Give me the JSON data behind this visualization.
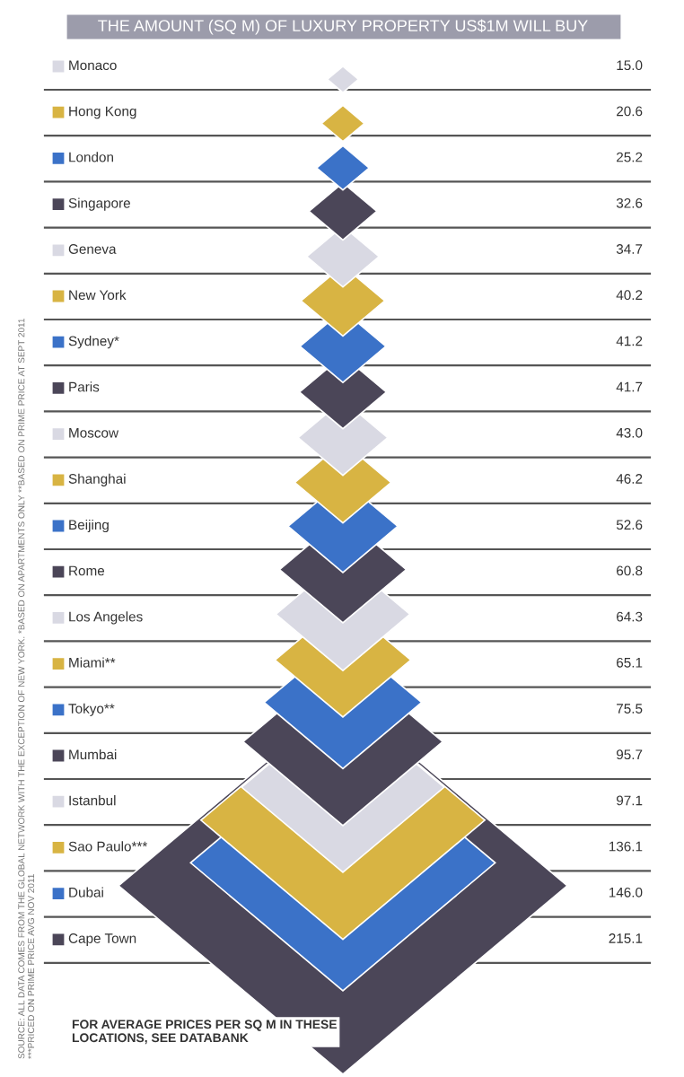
{
  "chart_data": {
    "type": "other",
    "title": "THE AMOUNT (SQ M) OF LUXURY PROPERTY US$1M WILL BUY",
    "categories": [
      "Monaco",
      "Hong Kong",
      "London",
      "Singapore",
      "Geneva",
      "New York",
      "Sydney*",
      "Paris",
      "Moscow",
      "Shanghai",
      "Beijing",
      "Rome",
      "Los Angeles",
      "Miami**",
      "Tokyo**",
      "Mumbai",
      "Istanbul",
      "Sao Paulo***",
      "Dubai",
      "Cape Town"
    ],
    "values": [
      15.0,
      20.6,
      25.2,
      32.6,
      34.7,
      40.2,
      41.2,
      41.7,
      43.0,
      46.2,
      52.6,
      60.8,
      64.3,
      65.1,
      75.5,
      95.7,
      97.1,
      136.1,
      146.0,
      215.1
    ],
    "colors": [
      "#d9d9e3",
      "#d8b443",
      "#3b72c8",
      "#4b4658",
      "#d9d9e3",
      "#d8b443",
      "#3b72c8",
      "#4b4658",
      "#d9d9e3",
      "#d8b443",
      "#3b72c8",
      "#4b4658",
      "#d9d9e3",
      "#d8b443",
      "#3b72c8",
      "#4b4658",
      "#d9d9e3",
      "#d8b443",
      "#3b72c8",
      "#4b4658"
    ],
    "value_labels": [
      "15.0",
      "20.6",
      "25.2",
      "32.6",
      "34.7",
      "40.2",
      "41.2",
      "41.7",
      "43.0",
      "46.2",
      "52.6",
      "60.8",
      "64.3",
      "65.1",
      "75.5",
      "95.7",
      "97.1",
      "136.1",
      "146.0",
      "215.1"
    ],
    "annotations": [
      "SOURCE: ALL DATA COMES FROM THE GLOBAL NETWORK WITH THE EXCEPTION OF NEW YORK. *BASED ON APARTMENTS ONLY **BASED ON PRIME PRICE AT SEPT 2011 ***PRICED ON PRIME PRICE AVG NOV 2011",
      "FOR AVERAGE PRICES PER SQ M IN THESE LOCATIONS, SEE DATABANK"
    ]
  }
}
